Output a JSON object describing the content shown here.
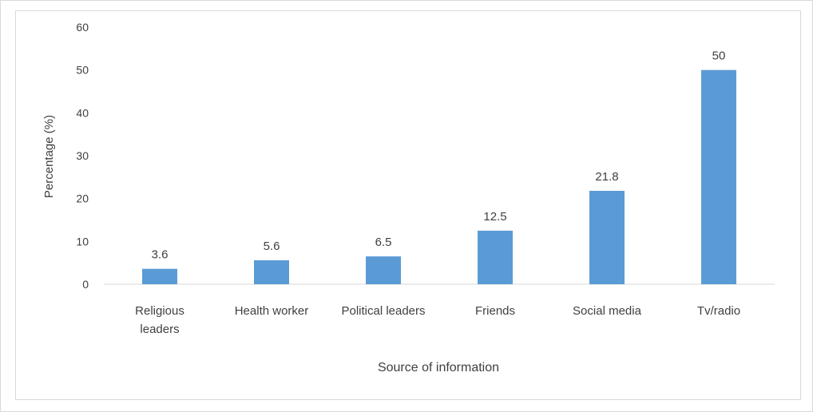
{
  "chart_data": {
    "type": "bar",
    "categories": [
      "Religious leaders",
      "Health worker",
      "Political leaders",
      "Friends",
      "Social media",
      "Tv/radio"
    ],
    "category_lines": [
      [
        "Religious",
        "leaders"
      ],
      [
        "Health worker"
      ],
      [
        "Political leaders"
      ],
      [
        "Friends"
      ],
      [
        "Social media"
      ],
      [
        "Tv/radio"
      ]
    ],
    "values": [
      3.6,
      5.6,
      6.5,
      12.5,
      21.8,
      50
    ],
    "value_labels": [
      "3.6",
      "5.6",
      "6.5",
      "12.5",
      "21.8",
      "50"
    ],
    "xlabel": "Source of information",
    "ylabel": "Percentage (%)",
    "ylim": [
      0,
      60
    ],
    "yticks": [
      "0",
      "10",
      "20",
      "30",
      "40",
      "50",
      "60"
    ],
    "grid": false,
    "legend": "none",
    "bar_color": "#5b9bd5"
  }
}
